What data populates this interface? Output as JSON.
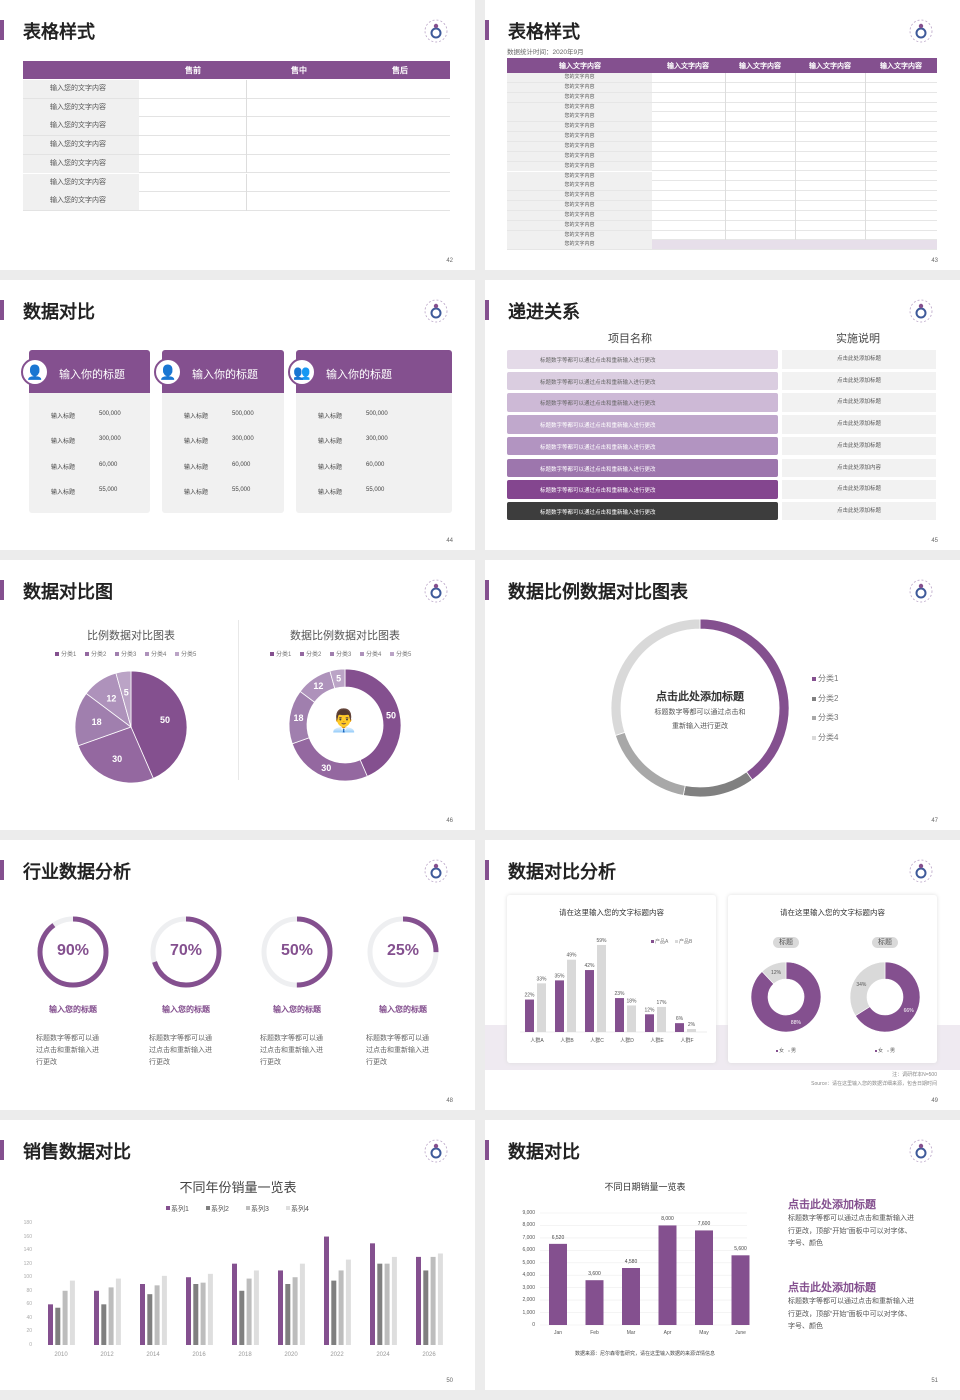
{
  "colors": {
    "accent": "#84508f",
    "dark": "#3d3d3d",
    "gray": "#808080",
    "light_gray": "#d9d9d9"
  },
  "logo_icon": "logo-emblem",
  "s42": {
    "title": "表格样式",
    "page": "42",
    "headers": [
      "售前",
      "售中",
      "售后"
    ],
    "rows": [
      "输入您的文字内容",
      "输入您的文字内容",
      "输入您的文字内容",
      "输入您的文字内容",
      "输入您的文字内容",
      "输入您的文字内容",
      "输入您的文字内容"
    ]
  },
  "s43": {
    "title": "表格样式",
    "page": "43",
    "subtitle": "数据统计时间：2020年9月",
    "headers": [
      "输入文字内容",
      "输入文字内容",
      "输入文字内容",
      "输入文字内容",
      "输入文字内容"
    ],
    "rows": [
      "您的文字内容",
      "您的文字内容",
      "您的文字内容",
      "您的文字内容",
      "您的文字内容",
      "您的文字内容",
      "您的文字内容",
      "您的文字内容",
      "您的文字内容",
      "您的文字内容",
      "您的文字内容",
      "您的文字内容",
      "您的文字内容",
      "您的文字内容",
      "您的文字内容",
      "您的文字内容",
      "您的文字内容",
      "您的文字内容"
    ]
  },
  "s44": {
    "title": "数据对比",
    "page": "44",
    "cards": [
      {
        "title": "输入你的标题",
        "icon": "phone-user-icon",
        "rows": [
          {
            "label": "输入标题",
            "value": "500,000"
          },
          {
            "label": "输入标题",
            "value": "300,000"
          },
          {
            "label": "输入标题",
            "value": "60,000"
          },
          {
            "label": "输入标题",
            "value": "55,000"
          }
        ]
      },
      {
        "title": "输入你的标题",
        "icon": "user-add-icon",
        "rows": [
          {
            "label": "输入标题",
            "value": "500,000"
          },
          {
            "label": "输入标题",
            "value": "300,000"
          },
          {
            "label": "输入标题",
            "value": "60,000"
          },
          {
            "label": "输入标题",
            "value": "55,000"
          }
        ]
      },
      {
        "title": "输入你的标题",
        "icon": "users-icon",
        "rows": [
          {
            "label": "输入标题",
            "value": "500,000"
          },
          {
            "label": "输入标题",
            "value": "300,000"
          },
          {
            "label": "输入标题",
            "value": "60,000"
          },
          {
            "label": "输入标题",
            "value": "55,000"
          }
        ]
      }
    ]
  },
  "s45": {
    "title": "递进关系",
    "page": "45",
    "col1": "项目名称",
    "col2": "实施说明",
    "rows": [
      {
        "text": "标题数字等都可以通过点击和重新输入进行更改",
        "note": "点击此处添加标题"
      },
      {
        "text": "标题数字等都可以通过点击和重新输入进行更改",
        "note": "点击此处添加标题"
      },
      {
        "text": "标题数字等都可以通过点击和重新输入进行更改",
        "note": "点击此处添加标题"
      },
      {
        "text": "标题数字等都可以通过点击和重新输入进行更改",
        "note": "点击此处添加标题"
      },
      {
        "text": "标题数字等都可以通过点击和重新输入进行更改",
        "note": "点击此处添加标题"
      },
      {
        "text": "标题数字等都可以通过点击和重新输入进行更改",
        "note": "点击此处添加内容"
      },
      {
        "text": "标题数字等都可以通过点击和重新输入进行更改",
        "note": "点击此处添加标题"
      },
      {
        "text": "标题数字等都可以通过点击和重新输入进行更改",
        "note": "点击此处添加标题"
      }
    ],
    "row_colors": [
      "#e4dae8",
      "#dacde0",
      "#cdb9d6",
      "#c0a8cc",
      "#b294c1",
      "#9d76ad",
      "#84468f",
      "#3d3d3d"
    ]
  },
  "s46": {
    "title": "数据对比图",
    "page": "46"
  },
  "s47": {
    "title": "数据比例数据对比图表",
    "page": "47",
    "center_title": "点击此处添加标题",
    "center_desc": [
      "标题数字等都可以通过点击和",
      "重新输入进行更改"
    ]
  },
  "s48": {
    "title": "行业数据分析",
    "page": "48",
    "items": [
      {
        "percent": 90,
        "label": "90%",
        "title": "输入您的标题",
        "desc": [
          "标题数字等都可以通",
          "过点击和重新输入进",
          "行更改"
        ]
      },
      {
        "percent": 70,
        "label": "70%",
        "title": "输入您的标题",
        "desc": [
          "标题数字等都可以通",
          "过点击和重新输入进",
          "行更改"
        ]
      },
      {
        "percent": 50,
        "label": "50%",
        "title": "输入您的标题",
        "desc": [
          "标题数字等都可以通",
          "过点击和重新输入进",
          "行更改"
        ]
      },
      {
        "percent": 25,
        "label": "25%",
        "title": "输入您的标题",
        "desc": [
          "标题数字等都可以通",
          "过点击和重新输入进",
          "行更改"
        ]
      }
    ]
  },
  "s49": {
    "title": "数据对比分析",
    "page": "49",
    "card1_title": "请在这里输入您的文字标题内容",
    "card2_title": "请在这里输入您的文字标题内容",
    "note": "注：调研样本N=500",
    "source": "Source：请在这里输入您的数据详细来源，包含日期时间"
  },
  "s50": {
    "title": "销售数据对比",
    "page": "50"
  },
  "s51": {
    "title": "数据对比",
    "page": "51",
    "blocks": [
      {
        "title": "点击此处添加标题",
        "desc": [
          "标题数字等都可以通过点击和重新输入进",
          "行更改，顶部“开始”面板中可以对字体、",
          "字号、颜色"
        ]
      },
      {
        "title": "点击此处添加标题",
        "desc": [
          "标题数字等都可以通过点击和重新输入进",
          "行更改，顶部“开始”面板中可以对字体、",
          "字号、颜色"
        ]
      }
    ]
  },
  "chart_data": [
    {
      "id": "pie46",
      "type": "pie",
      "title": "比例数据对比图表",
      "categories": [
        "分类1",
        "分类2",
        "分类3",
        "分类4",
        "分类5"
      ],
      "values": [
        50,
        30,
        18,
        12,
        5
      ],
      "colors": [
        "#84508f",
        "#9468a0",
        "#a07fae",
        "#ae92bb",
        "#bba4c6"
      ],
      "legend": "top"
    },
    {
      "id": "donut46",
      "type": "pie",
      "title": "数据比例数据对比图表",
      "categories": [
        "分类1",
        "分类2",
        "分类3",
        "分类4",
        "分类5"
      ],
      "values": [
        50,
        30,
        18,
        12,
        5
      ],
      "colors": [
        "#84508f",
        "#9468a0",
        "#a07fae",
        "#ae92bb",
        "#bba4c6"
      ],
      "legend": "top",
      "center_icon": "presenter-icon"
    },
    {
      "id": "donut47",
      "type": "pie",
      "categories": [
        "分类1",
        "分类2",
        "分类3",
        "分类4"
      ],
      "values": [
        40,
        13,
        17,
        30
      ],
      "colors": [
        "#84508f",
        "#808080",
        "#a8a8a8",
        "#d9d9d9"
      ],
      "legend": "right"
    },
    {
      "id": "bar49",
      "type": "bar",
      "title": "请在这里输入您的文字标题内容",
      "categories": [
        "人群A",
        "人群B",
        "人群C",
        "人群D",
        "人群E",
        "人群F"
      ],
      "series": [
        {
          "name": "产品A",
          "values": [
            22,
            35,
            42,
            23,
            12,
            6
          ],
          "color": "#84508f"
        },
        {
          "name": "产品B",
          "values": [
            33,
            49,
            59,
            18,
            17,
            2
          ],
          "color": "#d9d9d9"
        }
      ],
      "data_labels": true,
      "legend": "top-right"
    },
    {
      "id": "donuts49",
      "type": "pie",
      "charts": [
        {
          "label": "标题",
          "values": [
            88,
            12
          ],
          "value_labels": [
            "88%",
            "12%"
          ]
        },
        {
          "label": "标题",
          "values": [
            66,
            34
          ],
          "value_labels": [
            "66%",
            "34%"
          ]
        }
      ],
      "categories": [
        "女",
        "男"
      ],
      "colors": [
        "#84508f",
        "#d9d9d9"
      ]
    },
    {
      "id": "bar50",
      "type": "bar",
      "title": "不同年份销量一览表",
      "categories": [
        "2010",
        "2012",
        "2014",
        "2016",
        "2018",
        "2020",
        "2022",
        "2024",
        "2026"
      ],
      "series": [
        {
          "name": "系列1",
          "values": [
            60,
            80,
            90,
            100,
            120,
            110,
            160,
            150,
            130
          ],
          "color": "#84508f"
        },
        {
          "name": "系列2",
          "values": [
            55,
            60,
            75,
            90,
            80,
            90,
            95,
            120,
            110
          ],
          "color": "#808080"
        },
        {
          "name": "系列3",
          "values": [
            80,
            85,
            88,
            92,
            98,
            100,
            110,
            120,
            130
          ],
          "color": "#bdbdbd"
        },
        {
          "name": "系列4",
          "values": [
            95,
            98,
            102,
            105,
            110,
            120,
            126,
            130,
            135
          ],
          "color": "#dedede"
        }
      ],
      "ylim": [
        0,
        180
      ],
      "yticks": [
        "0",
        "20",
        "40",
        "60",
        "80",
        "100",
        "120",
        "140",
        "160",
        "180"
      ],
      "legend": "top"
    },
    {
      "id": "bar51",
      "type": "bar",
      "title": "不同日期销量一览表",
      "categories": [
        "Jan",
        "Feb",
        "Mar",
        "Apr",
        "May",
        "June"
      ],
      "values": [
        6520,
        3600,
        4580,
        8000,
        7600,
        5600
      ],
      "data_labels": [
        "6,520",
        "3,600",
        "4,580",
        "8,000",
        "7,600",
        "5,600"
      ],
      "ylim": [
        0,
        9000
      ],
      "yticks": [
        "0",
        "1,000",
        "2,000",
        "3,000",
        "4,000",
        "5,000",
        "6,000",
        "7,000",
        "8,000",
        "9,000"
      ],
      "grid": true,
      "source": "数据来源：尼尔森零售研究，请在这里输入数据的来源详情信息"
    }
  ]
}
